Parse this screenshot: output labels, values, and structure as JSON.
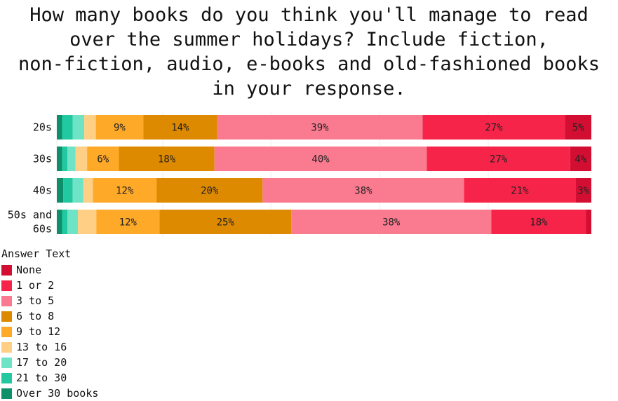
{
  "chart_data": {
    "type": "bar",
    "orientation": "horizontal",
    "stacked": "percent",
    "title_lines": [
      "How many books do you think you'll manage to read",
      "over the summer holidays? Include fiction,",
      "non-fiction, audio, e-books and old-fashioned books",
      "in your response."
    ],
    "categories": [
      [
        "20s"
      ],
      [
        "30s"
      ],
      [
        "40s"
      ],
      [
        "50s and",
        "60s"
      ]
    ],
    "legend_title": "Answer Text",
    "legend_position": "bottom-left",
    "x_range": [
      0,
      100
    ],
    "grid": true,
    "series": [
      {
        "name": "Over 30 books",
        "color": "#0d8f6a",
        "values": [
          1,
          1,
          1.2,
          1
        ]
      },
      {
        "name": "21 to 30",
        "color": "#22c8a0",
        "values": [
          2,
          1,
          1.8,
          1
        ]
      },
      {
        "name": "17 to 20",
        "color": "#6fe3c6",
        "values": [
          2.2,
          1.5,
          2,
          2
        ]
      },
      {
        "name": "13 to 16",
        "color": "#ffcf85",
        "values": [
          2.2,
          2.2,
          1.8,
          3.5
        ]
      },
      {
        "name": "9 to 12",
        "color": "#ffa929",
        "values": [
          9,
          6,
          12,
          12
        ],
        "labels": [
          "9%",
          "6%",
          "12%",
          "12%"
        ]
      },
      {
        "name": "6 to 8",
        "color": "#de8a00",
        "values": [
          14,
          18,
          20,
          25
        ],
        "labels": [
          "14%",
          "18%",
          "20%",
          "25%"
        ]
      },
      {
        "name": "3 to 5",
        "color": "#fa7a90",
        "values": [
          39,
          40,
          38,
          38
        ],
        "labels": [
          "39%",
          "40%",
          "38%",
          "38%"
        ]
      },
      {
        "name": "1 or 2",
        "color": "#f7244a",
        "values": [
          27,
          27,
          21,
          18
        ],
        "labels": [
          "27%",
          "27%",
          "21%",
          "18%"
        ]
      },
      {
        "name": "None",
        "color": "#d20f33",
        "values": [
          5,
          4,
          3,
          1
        ],
        "labels": [
          "5%",
          "4%",
          "3%",
          ""
        ]
      }
    ]
  }
}
